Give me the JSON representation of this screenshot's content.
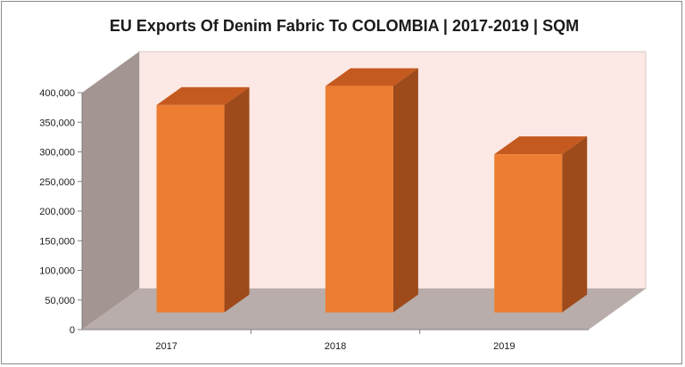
{
  "chart_data": {
    "type": "bar",
    "title": "EU Exports Of Denim Fabric To COLOMBIA  |  2017-2019  |  SQM",
    "xlabel": "",
    "ylabel": "",
    "categories": [
      "2017",
      "2018",
      "2019"
    ],
    "values": [
      350000,
      382000,
      267000
    ],
    "ylim": [
      0,
      400000
    ],
    "yticks": [
      0,
      50000,
      100000,
      150000,
      200000,
      250000,
      300000,
      350000,
      400000
    ],
    "ytick_labels": [
      "0",
      "50,000",
      "100,000",
      "150,000",
      "200,000",
      "250,000",
      "300,000",
      "350,000",
      "400,000"
    ],
    "grid": false,
    "legend": "none",
    "style": "3d-column",
    "colors": {
      "bar_front": "#ED7D31",
      "bar_side": "#9E4A1B",
      "bar_top": "#C55A20",
      "back_wall": "#FCE8E4",
      "side_wall": "#A39592",
      "floor": "#B8ADAA"
    }
  }
}
